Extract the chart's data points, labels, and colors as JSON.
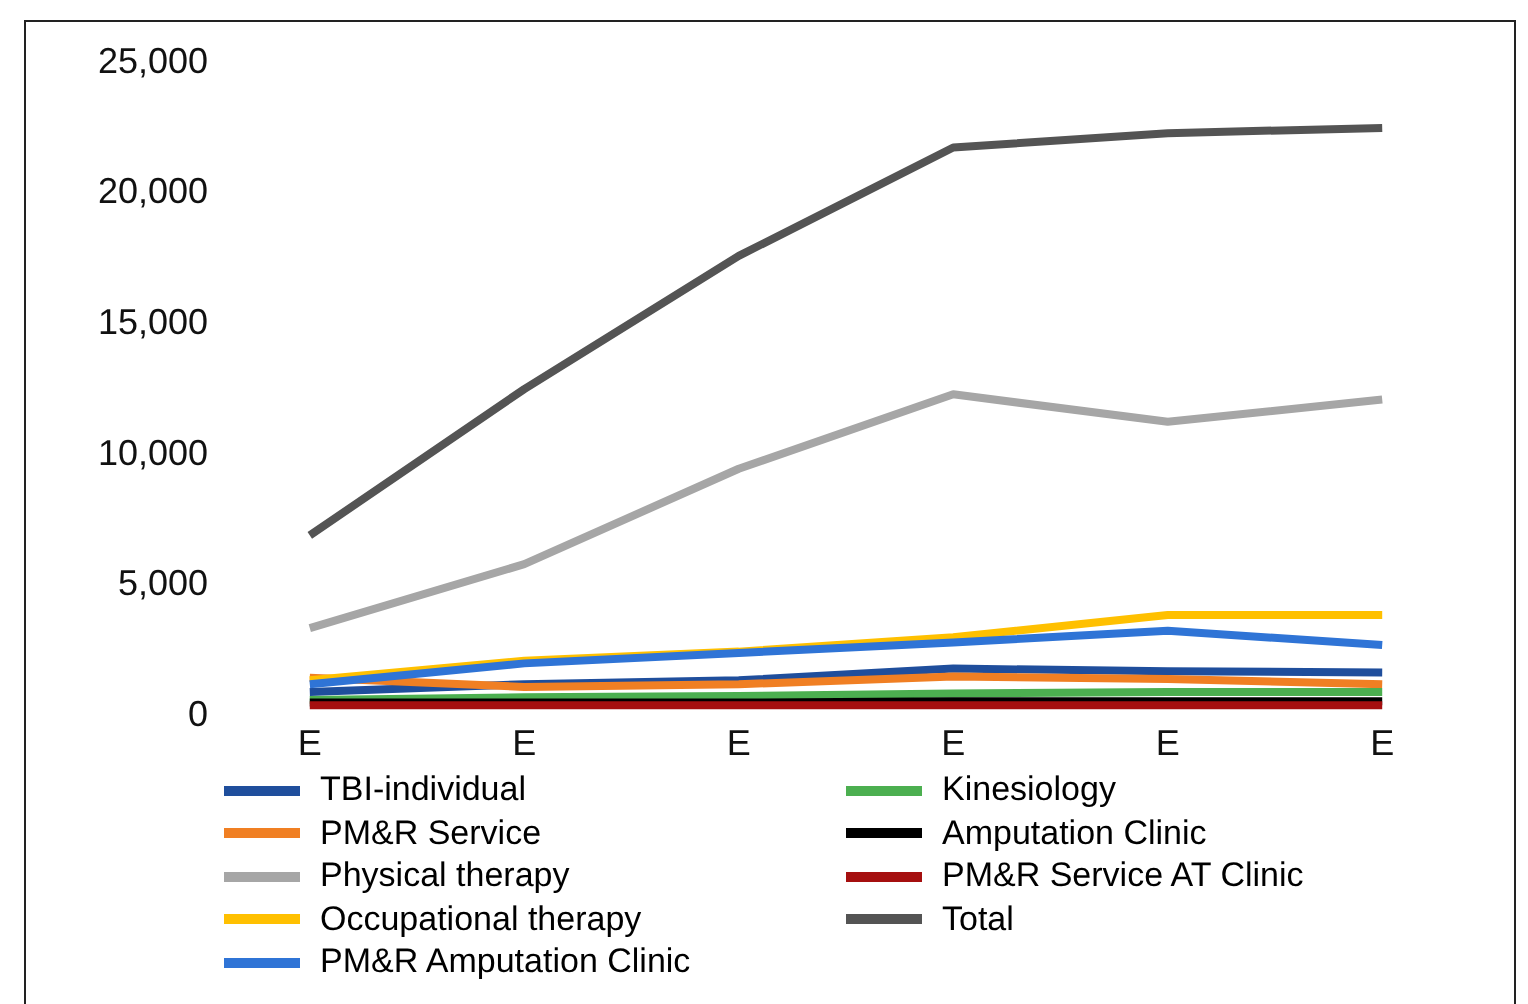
{
  "chart_data": {
    "type": "line",
    "categories": [
      "E",
      "E",
      "E",
      "E",
      "E",
      "E"
    ],
    "ylim": [
      0,
      25000
    ],
    "yticks": [
      {
        "value": 0,
        "label": "0"
      },
      {
        "value": 5000,
        "label": "5,000"
      },
      {
        "value": 10000,
        "label": "10,000"
      },
      {
        "value": 15000,
        "label": "15,000"
      },
      {
        "value": 20000,
        "label": "20,000"
      },
      {
        "value": 25000,
        "label": "25,000"
      }
    ],
    "grid": false,
    "legend": "bottom",
    "marker": "none",
    "line_style": "solid",
    "series": [
      {
        "name": "TBI-individual",
        "color": "#1f4e9c",
        "values": [
          800,
          1100,
          1250,
          1700,
          1600,
          1550
        ]
      },
      {
        "name": "PM&R Service",
        "color": "#f07f23",
        "values": [
          1350,
          1000,
          1100,
          1400,
          1300,
          1100
        ]
      },
      {
        "name": "Physical therapy",
        "color": "#a6a6a6",
        "values": [
          3250,
          5700,
          9350,
          12200,
          11150,
          12000
        ]
      },
      {
        "name": "Occupational therapy",
        "color": "#ffc000",
        "values": [
          1250,
          2000,
          2350,
          2900,
          3750,
          3750
        ]
      },
      {
        "name": "PM&R Amputation Clinic",
        "color": "#2f74d6",
        "values": [
          1100,
          1900,
          2300,
          2700,
          3150,
          2600
        ]
      },
      {
        "name": "Kinesiology",
        "color": "#4caf50",
        "values": [
          500,
          600,
          650,
          750,
          800,
          800
        ]
      },
      {
        "name": "Amputation Clinic",
        "color": "#000000",
        "values": [
          400,
          400,
          400,
          450,
          450,
          450
        ]
      },
      {
        "name": "PM&R Service AT Clinic",
        "color": "#a50f0f",
        "values": [
          300,
          300,
          300,
          300,
          300,
          300
        ]
      },
      {
        "name": "Total",
        "color": "#545454",
        "values": [
          6800,
          12400,
          17500,
          21650,
          22200,
          22400
        ]
      }
    ]
  }
}
